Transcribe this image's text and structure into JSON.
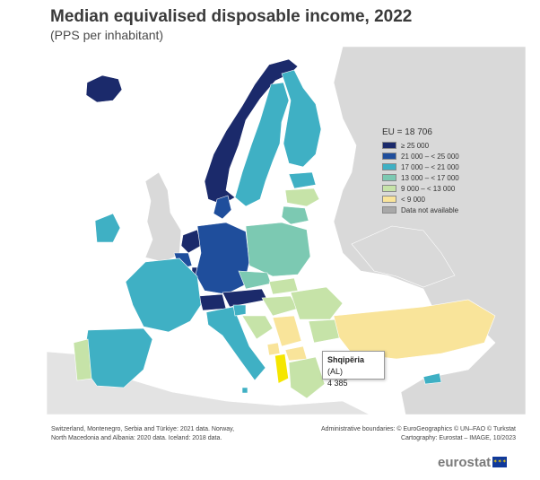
{
  "header": {
    "title": "Median equivalised disposable income, 2022",
    "subtitle": "(PPS per inhabitant)"
  },
  "legend": {
    "eu_label": "EU = 18 706",
    "classes": [
      {
        "label": "≥ 25 000",
        "color": "#1b2a6b"
      },
      {
        "label": "21 000 – < 25 000",
        "color": "#1f4e9c"
      },
      {
        "label": "17 000 – < 21 000",
        "color": "#3fb0c4"
      },
      {
        "label": "13 000 – < 17 000",
        "color": "#7cc9b2"
      },
      {
        "label": "9 000 – < 13 000",
        "color": "#c6e3a8"
      },
      {
        "label": "< 9 000",
        "color": "#f9e49a"
      },
      {
        "label": "Data not available",
        "color": "#a8a8a8"
      }
    ]
  },
  "tooltip": {
    "name": "Shqipëria",
    "code": "(AL)",
    "value": "4 385"
  },
  "notes": {
    "left_line1": "Switzerland, Montenegro, Serbia and Türkiye: 2021 data. Norway,",
    "left_line2": "North Macedonia and Albania: 2020 data. Iceland: 2018 data.",
    "right_line1": "Administrative boundaries: © EuroGeographics © UN–FAO © Turkstat",
    "right_line2": "Cartography: Eurostat – IMAGE, 10/2023"
  },
  "logo": {
    "word": "eurostat",
    "flag_color": "#10399a",
    "stars_color": "#f5d000"
  },
  "map": {
    "background_color": "#ffffff",
    "nodata_color": "#d9d9d9",
    "regions": [
      {
        "name": "Iceland",
        "code": "IS",
        "class": 0
      },
      {
        "name": "Norway",
        "code": "NO",
        "class": 0
      },
      {
        "name": "Sweden",
        "code": "SE",
        "class": 2
      },
      {
        "name": "Finland",
        "code": "FI",
        "class": 2
      },
      {
        "name": "Estonia",
        "code": "EE",
        "class": 2
      },
      {
        "name": "Latvia",
        "code": "LV",
        "class": 4
      },
      {
        "name": "Lithuania",
        "code": "LT",
        "class": 3
      },
      {
        "name": "Ireland",
        "code": "IE",
        "class": 2
      },
      {
        "name": "Denmark",
        "code": "DK",
        "class": 1
      },
      {
        "name": "Netherlands",
        "code": "NL",
        "class": 0
      },
      {
        "name": "Belgium",
        "code": "BE",
        "class": 1
      },
      {
        "name": "Luxembourg",
        "code": "LU",
        "class": 0
      },
      {
        "name": "Germany",
        "code": "DE",
        "class": 1
      },
      {
        "name": "Poland",
        "code": "PL",
        "class": 3
      },
      {
        "name": "Czechia",
        "code": "CZ",
        "class": 3
      },
      {
        "name": "Slovakia",
        "code": "SK",
        "class": 4
      },
      {
        "name": "Austria",
        "code": "AT",
        "class": 0
      },
      {
        "name": "Switzerland",
        "code": "CH",
        "class": 0
      },
      {
        "name": "France",
        "code": "FR",
        "class": 2
      },
      {
        "name": "Spain",
        "code": "ES",
        "class": 2
      },
      {
        "name": "Portugal",
        "code": "PT",
        "class": 4
      },
      {
        "name": "Italy",
        "code": "IT",
        "class": 2
      },
      {
        "name": "Slovenia",
        "code": "SI",
        "class": 2
      },
      {
        "name": "Hungary",
        "code": "HU",
        "class": 4
      },
      {
        "name": "Croatia",
        "code": "HR",
        "class": 4
      },
      {
        "name": "Romania",
        "code": "RO",
        "class": 4
      },
      {
        "name": "Bulgaria",
        "code": "BG",
        "class": 4
      },
      {
        "name": "Serbia",
        "code": "RS",
        "class": 5
      },
      {
        "name": "Montenegro",
        "code": "ME",
        "class": 5
      },
      {
        "name": "North Macedonia",
        "code": "MK",
        "class": 5
      },
      {
        "name": "Albania",
        "code": "AL",
        "class": 5
      },
      {
        "name": "Greece",
        "code": "EL",
        "class": 4
      },
      {
        "name": "Türkiye",
        "code": "TR",
        "class": 5
      },
      {
        "name": "Malta",
        "code": "MT",
        "class": 2
      },
      {
        "name": "Cyprus",
        "code": "CY",
        "class": 2
      }
    ]
  }
}
